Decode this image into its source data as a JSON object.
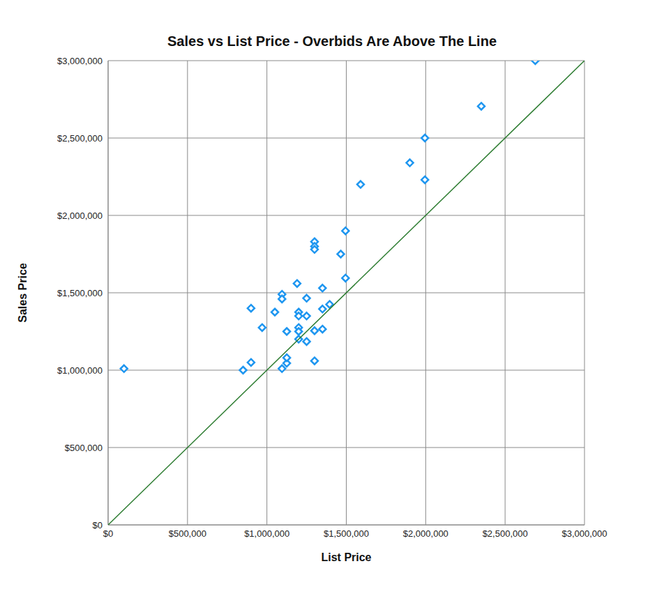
{
  "chart_data": {
    "type": "scatter",
    "title": "Sales vs List Price - Overbids Are Above The Line",
    "x_label": "List Price",
    "y_label": "Sales Price",
    "xlim": [
      0,
      3000000
    ],
    "ylim": [
      0,
      3000000
    ],
    "xticks": [
      {
        "value": 0,
        "label": "$0"
      },
      {
        "value": 500000,
        "label": "$500,000"
      },
      {
        "value": 1000000,
        "label": "$1,000,000"
      },
      {
        "value": 1500000,
        "label": "$1,500,000"
      },
      {
        "value": 2000000,
        "label": "$2,000,000"
      },
      {
        "value": 2500000,
        "label": "$2,500,000"
      },
      {
        "value": 3000000,
        "label": "$3,000,000"
      }
    ],
    "yticks": [
      {
        "value": 0,
        "label": "$0"
      },
      {
        "value": 500000,
        "label": "$500,000"
      },
      {
        "value": 1000000,
        "label": "$1,000,000"
      },
      {
        "value": 1500000,
        "label": "$1,500,000"
      },
      {
        "value": 2000000,
        "label": "$2,000,000"
      },
      {
        "value": 2500000,
        "label": "$2,500,000"
      },
      {
        "value": 3000000,
        "label": "$3,000,000"
      }
    ],
    "grid": true,
    "series": [
      {
        "type": "scatter",
        "color": "#1e96f0",
        "marker": "diamond",
        "x": [
          100000,
          850000,
          900000,
          900000,
          970000,
          1050000,
          1095000,
          1095000,
          1095000,
          1125000,
          1125000,
          1125000,
          1190000,
          1200000,
          1200000,
          1200000,
          1200000,
          1200000,
          1250000,
          1250000,
          1250000,
          1300000,
          1300000,
          1300000,
          1300000,
          1300000,
          1350000,
          1350000,
          1350000,
          1395000,
          1465000,
          1495000,
          1495000,
          1590000,
          1900000,
          1995000,
          1995000,
          2350000,
          2690000
        ],
        "values": [
          1010000,
          1000000,
          1050000,
          1400000,
          1275000,
          1375000,
          1490000,
          1460000,
          1010000,
          1045000,
          1080000,
          1250000,
          1560000,
          1375000,
          1350000,
          1275000,
          1250000,
          1200000,
          1465000,
          1350000,
          1185000,
          1830000,
          1800000,
          1780000,
          1255000,
          1060000,
          1265000,
          1530000,
          1395000,
          1425000,
          1750000,
          1900000,
          1595000,
          2200000,
          2340000,
          2500000,
          2230000,
          2705000,
          3000000
        ]
      },
      {
        "type": "line",
        "color": "#2e7d32",
        "line_style": "solid",
        "x": [
          0,
          3000000
        ],
        "values": [
          0,
          3000000
        ]
      }
    ]
  }
}
